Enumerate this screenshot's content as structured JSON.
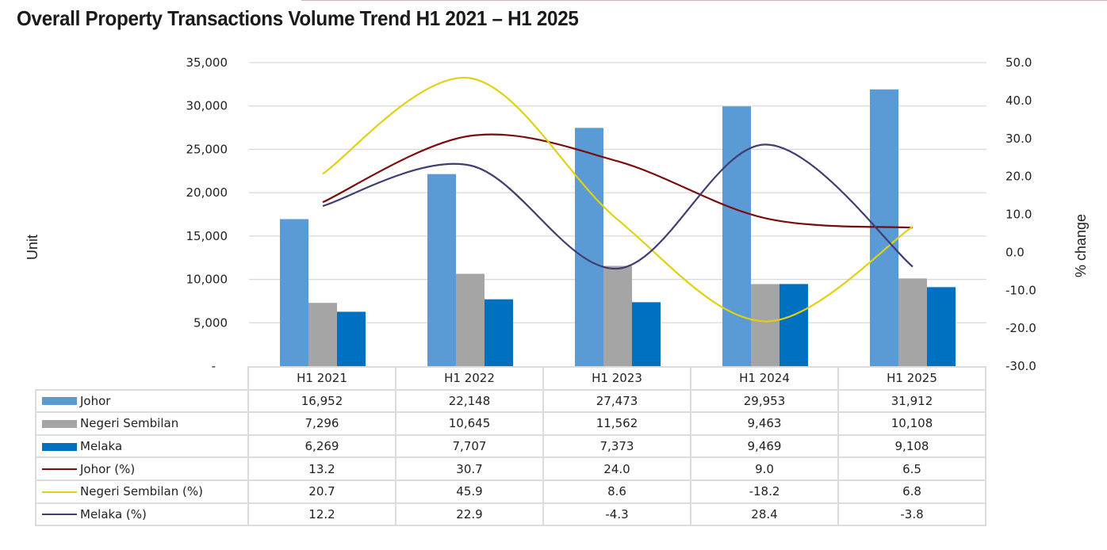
{
  "title": "Overall Property Transactions Volume Trend H1 2021 – H1 2025",
  "chart_data": {
    "type": "bar+line",
    "title": "Overall Property Transactions Volume Trend H1 2021 – H1 2025",
    "categories": [
      "H1 2021",
      "H1 2022",
      "H1 2023",
      "H1 2024",
      "H1 2025"
    ],
    "ylabel": "Unit",
    "y2label": "% change",
    "ylim": [
      0,
      35000
    ],
    "y2lim": [
      -30,
      50
    ],
    "yticks": [
      "-",
      "5,000",
      "10,000",
      "15,000",
      "20,000",
      "25,000",
      "30,000",
      "35,000"
    ],
    "y2ticks": [
      "-30.0",
      "-20.0",
      "-10.0",
      "0.0",
      "10.0",
      "20.0",
      "30.0",
      "40.0",
      "50.0"
    ],
    "grid": true,
    "legend": "data-table-below",
    "bar_series": [
      {
        "name": "Johor",
        "color": "#5b9bd5",
        "values": [
          16952,
          22148,
          27473,
          29953,
          31912
        ],
        "labels": [
          "16,952",
          "22,148",
          "27,473",
          "29,953",
          "31,912"
        ]
      },
      {
        "name": "Negeri Sembilan",
        "color": "#a5a5a5",
        "values": [
          7296,
          10645,
          11562,
          9463,
          10108
        ],
        "labels": [
          "7,296",
          "10,645",
          "11,562",
          "9,463",
          "10,108"
        ]
      },
      {
        "name": "Melaka",
        "color": "#0070c0",
        "values": [
          6269,
          7707,
          7373,
          9469,
          9108
        ],
        "labels": [
          "6,269",
          "7,707",
          "7,373",
          "9,469",
          "9,108"
        ]
      }
    ],
    "line_series": [
      {
        "name": "Johor (%)",
        "color": "#7b0c0c",
        "values": [
          13.2,
          30.7,
          24.0,
          9.0,
          6.5
        ],
        "labels": [
          "13.2",
          "30.7",
          "24.0",
          "9.0",
          "6.5"
        ]
      },
      {
        "name": "Negeri Sembilan (%)",
        "color": "#e2d013",
        "values": [
          20.7,
          45.9,
          8.6,
          -18.2,
          6.8
        ],
        "labels": [
          "20.7",
          "45.9",
          "8.6",
          "-18.2",
          "6.8"
        ]
      },
      {
        "name": "Melaka (%)",
        "color": "#3f3d72",
        "values": [
          12.2,
          22.9,
          -4.3,
          28.4,
          -3.8
        ],
        "labels": [
          "12.2",
          "22.9",
          "-4.3",
          "28.4",
          "-3.8"
        ]
      }
    ]
  }
}
